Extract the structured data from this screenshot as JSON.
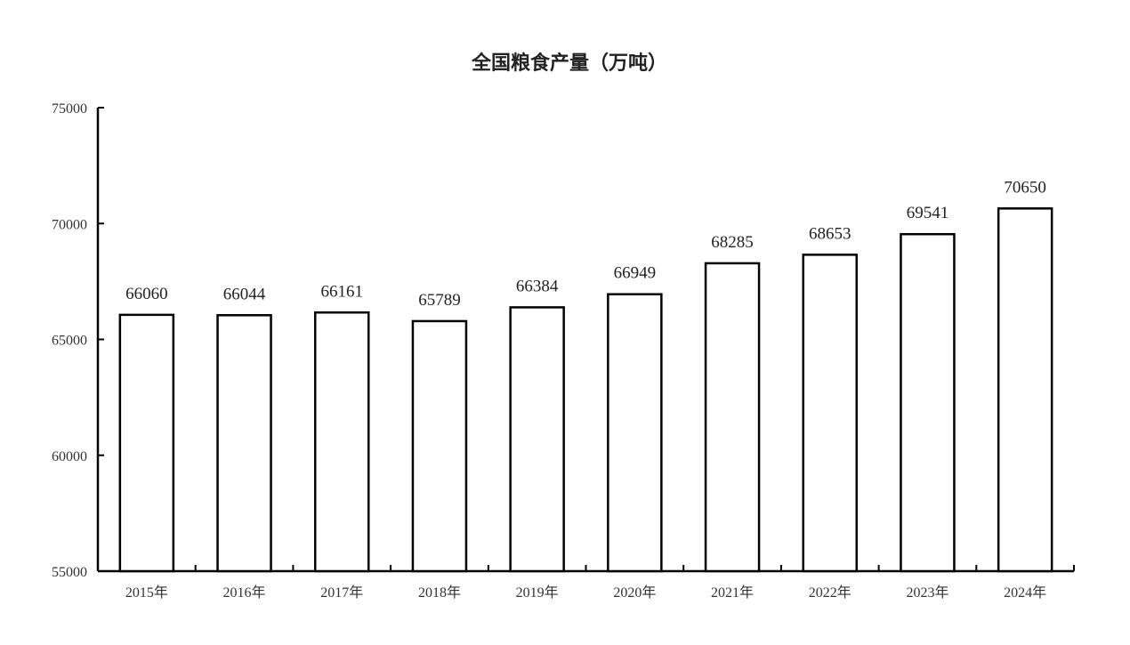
{
  "chart_data": {
    "type": "bar",
    "title": "全国粮食产量（万吨）",
    "categories": [
      "2015年",
      "2016年",
      "2017年",
      "2018年",
      "2019年",
      "2020年",
      "2021年",
      "2022年",
      "2023年",
      "2024年"
    ],
    "values": [
      66060,
      66044,
      66161,
      65789,
      66384,
      66949,
      68285,
      68653,
      69541,
      70650
    ],
    "data_labels": [
      "66060",
      "66044",
      "66161",
      "65789",
      "66384",
      "66949",
      "68285",
      "68653",
      "69541",
      "70650"
    ],
    "ylim": [
      55000,
      75000
    ],
    "yticks": [
      55000,
      60000,
      65000,
      70000,
      75000
    ],
    "ytick_labels": [
      "55000",
      "60000",
      "65000",
      "70000",
      "75000"
    ],
    "xlabel": "",
    "ylabel": "",
    "grid": false,
    "legend": "none",
    "colors": {
      "bar_fill": "#ffffff",
      "bar_stroke": "#000000",
      "axis": "#000000"
    }
  }
}
